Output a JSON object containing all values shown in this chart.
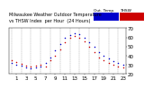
{
  "title": "Milwaukee Weather Outdoor Temperature vs THSW Index per Hour (24 Hours)",
  "legend_label_blue": "Out. Temp.",
  "legend_label_red": "THSW",
  "hours": [
    0,
    1,
    2,
    3,
    4,
    5,
    6,
    7,
    8,
    9,
    10,
    11,
    12,
    13,
    14,
    15,
    16,
    17,
    18,
    19,
    20,
    21,
    22,
    23
  ],
  "temp_blue": [
    32,
    30,
    29,
    27,
    26,
    27,
    28,
    32,
    38,
    46,
    53,
    60,
    63,
    65,
    64,
    60,
    55,
    50,
    44,
    40,
    37,
    34,
    32,
    30
  ],
  "thsw_red": [
    35,
    33,
    31,
    29,
    28,
    29,
    30,
    28,
    35,
    40,
    47,
    55,
    60,
    62,
    60,
    56,
    50,
    44,
    38,
    35,
    32,
    30,
    28,
    27
  ],
  "ylim": [
    20,
    70
  ],
  "yticks": [
    20,
    30,
    40,
    50,
    60,
    70
  ],
  "bg_color": "#ffffff",
  "plot_bg": "#ffffff",
  "blue_color": "#0000cc",
  "red_color": "#cc0000",
  "grid_color": "#888888",
  "tick_label_size": 4.0,
  "title_fontsize": 3.5,
  "legend_fontsize": 3.2,
  "marker_size": 1.2
}
